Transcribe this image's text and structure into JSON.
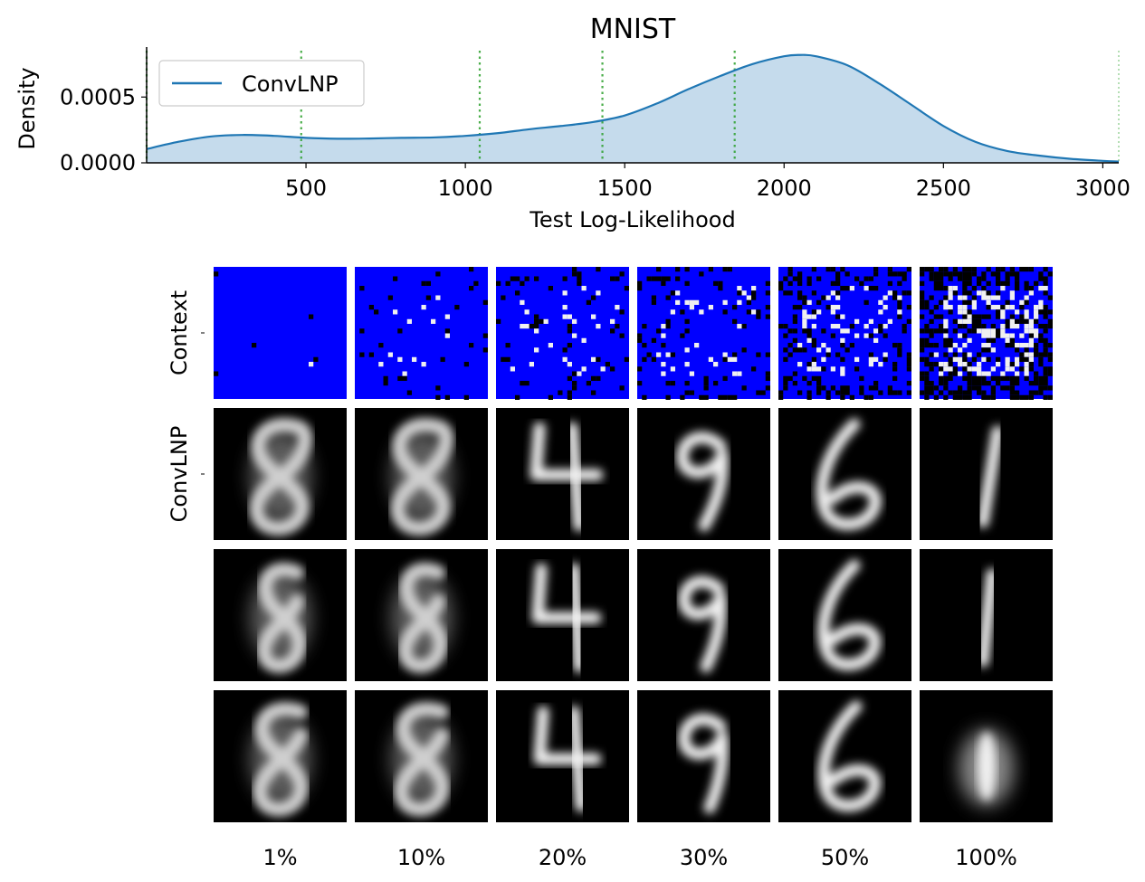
{
  "chart_data": [
    {
      "type": "area",
      "title": "MNIST",
      "xlabel": "Test Log-Likelihood",
      "ylabel": "Density",
      "xlim": [
        0,
        3050
      ],
      "ylim": [
        0,
        0.00088
      ],
      "xticks": [
        500,
        1000,
        1500,
        2000,
        2500,
        3000
      ],
      "xtick_labels": [
        "500",
        "1000",
        "1500",
        "2000",
        "2500",
        "3000"
      ],
      "yticks": [
        0,
        0.0005
      ],
      "ytick_labels": [
        "0.0000",
        "0.0005"
      ],
      "legend": {
        "location": "top-left",
        "entries": [
          "ConvLNP"
        ]
      },
      "series": [
        {
          "name": "ConvLNP",
          "color": "#1f77b4",
          "fill_color": "#c5dbec",
          "x": [
            0,
            100,
            200,
            300,
            400,
            500,
            600,
            700,
            800,
            900,
            1000,
            1100,
            1200,
            1300,
            1400,
            1500,
            1600,
            1700,
            1800,
            1900,
            2000,
            2050,
            2100,
            2200,
            2300,
            2400,
            2500,
            2600,
            2700,
            2800,
            2900,
            3000,
            3050
          ],
          "y": [
            0.000105,
            0.00016,
            0.0002,
            0.000212,
            0.000205,
            0.00019,
            0.000183,
            0.000185,
            0.00019,
            0.000193,
            0.000205,
            0.000225,
            0.000255,
            0.00028,
            0.00031,
            0.00036,
            0.00045,
            0.00056,
            0.00066,
            0.00075,
            0.00081,
            0.00082,
            0.00081,
            0.00074,
            0.0006,
            0.00044,
            0.00028,
            0.00016,
            9e-05,
            5.5e-05,
            3e-05,
            1.5e-05,
            1e-05
          ]
        }
      ],
      "reference_lines": {
        "color": "#2ca02c",
        "x": [
          0,
          485,
          1045,
          1430,
          1845,
          3050
        ]
      }
    },
    {
      "type": "image-grid",
      "row_labels": [
        "Context",
        "ConvLNP",
        "",
        ""
      ],
      "column_labels": [
        "1%",
        "10%",
        "20%",
        "30%",
        "50%",
        "100%"
      ],
      "context_color": "#0000ff",
      "digits": [
        "8",
        "8",
        "4",
        "9",
        "6",
        "1"
      ]
    }
  ]
}
